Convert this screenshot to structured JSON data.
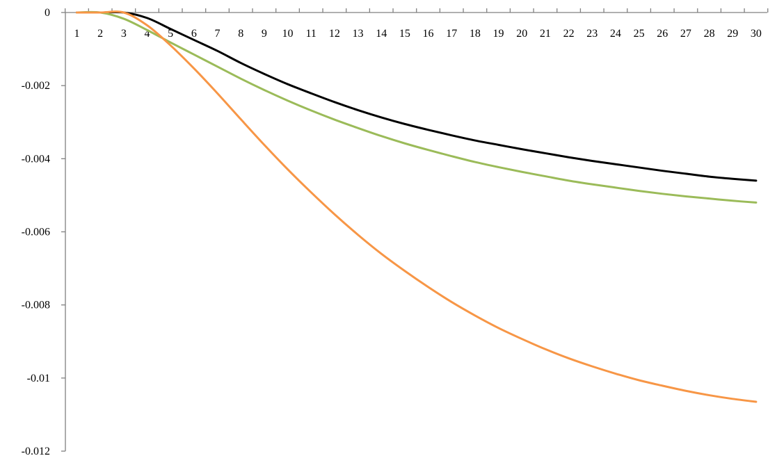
{
  "chart_data": {
    "type": "line",
    "title": "",
    "xlabel": "",
    "ylabel": "",
    "x": [
      1,
      2,
      3,
      4,
      5,
      6,
      7,
      8,
      9,
      10,
      11,
      12,
      13,
      14,
      15,
      16,
      17,
      18,
      19,
      20,
      21,
      22,
      23,
      24,
      25,
      26,
      27,
      28,
      29,
      30
    ],
    "x_tick_labels": [
      "1",
      "2",
      "3",
      "4",
      "5",
      "6",
      "7",
      "8",
      "9",
      "10",
      "11",
      "12",
      "13",
      "14",
      "15",
      "16",
      "17",
      "18",
      "19",
      "20",
      "21",
      "22",
      "23",
      "24",
      "25",
      "26",
      "27",
      "28",
      "29",
      "30"
    ],
    "y_ticks": [
      0,
      -0.002,
      -0.004,
      -0.006,
      -0.008,
      -0.01,
      -0.012
    ],
    "y_tick_labels": [
      "0",
      "-0.002",
      "-0.004",
      "-0.006",
      "-0.008",
      "-0.01",
      "-0.012"
    ],
    "ylim": [
      -0.012,
      0
    ],
    "grid": false,
    "legend": "none",
    "series": [
      {
        "color": "#000000",
        "values": [
          0,
          0,
          0,
          -0.00015,
          -0.00045,
          -0.00075,
          -0.00105,
          -0.00138,
          -0.00168,
          -0.00196,
          -0.00221,
          -0.00245,
          -0.00267,
          -0.00287,
          -0.00305,
          -0.00321,
          -0.00336,
          -0.0035,
          -0.00362,
          -0.00374,
          -0.00385,
          -0.00396,
          -0.00406,
          -0.00415,
          -0.00424,
          -0.00433,
          -0.00441,
          -0.00449,
          -0.00455,
          -0.0046
        ]
      },
      {
        "color": "#9bbb59",
        "values": [
          0,
          0,
          -0.00017,
          -0.00048,
          -0.00082,
          -0.00115,
          -0.00148,
          -0.00181,
          -0.00212,
          -0.00241,
          -0.00268,
          -0.00293,
          -0.00316,
          -0.00338,
          -0.00358,
          -0.00376,
          -0.00393,
          -0.00409,
          -0.00423,
          -0.00436,
          -0.00448,
          -0.0046,
          -0.0047,
          -0.00479,
          -0.00488,
          -0.00496,
          -0.00503,
          -0.00509,
          -0.00515,
          -0.0052
        ]
      },
      {
        "color": "#f79646",
        "values": [
          0,
          0,
          0,
          -0.00035,
          -0.0009,
          -0.00153,
          -0.00221,
          -0.00292,
          -0.00362,
          -0.00429,
          -0.00492,
          -0.00552,
          -0.00608,
          -0.0066,
          -0.00707,
          -0.00751,
          -0.00792,
          -0.00829,
          -0.00863,
          -0.00893,
          -0.00921,
          -0.00946,
          -0.00968,
          -0.00988,
          -0.01006,
          -0.01021,
          -0.01035,
          -0.01047,
          -0.01057,
          -0.01065
        ]
      }
    ]
  }
}
